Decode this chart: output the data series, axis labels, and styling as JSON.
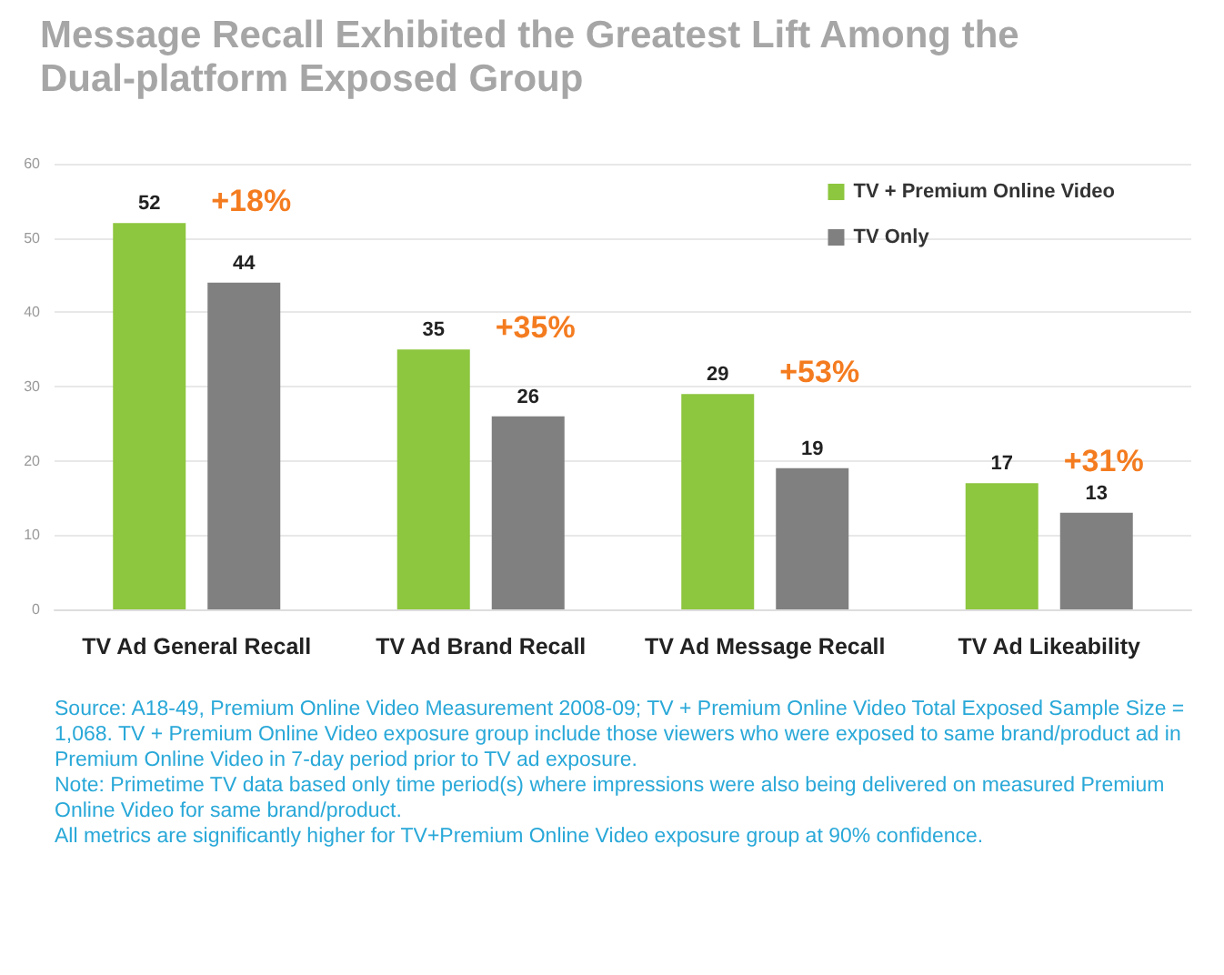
{
  "chart_data": {
    "type": "bar",
    "title": "Message Recall Exhibited the Greatest Lift Among the Dual-platform Exposed Group",
    "categories": [
      "TV Ad General Recall",
      "TV Ad Brand Recall",
      "TV Ad Message Recall",
      "TV Ad Likeability"
    ],
    "series": [
      {
        "name": "TV + Premium Online Video",
        "color": "#8dc63f",
        "values": [
          52,
          35,
          29,
          17
        ]
      },
      {
        "name": "TV Only",
        "color": "#808080",
        "values": [
          44,
          26,
          19,
          13
        ]
      }
    ],
    "ylim": [
      0,
      60
    ],
    "yticks": [
      0,
      10,
      20,
      30,
      40,
      50,
      60
    ],
    "grid": "y",
    "legend": "top right",
    "data_labels": true,
    "annotations": [
      "+18%",
      "+35%",
      "+53%",
      "+31%",
      "Source: A18-49, Premium Online Video Measurement 2008-09; TV + Premium Online Video Total Exposed Sample Size = 1,068. TV + Premium Online Video exposure group include those viewers who were exposed to same brand/product ad in Premium Online Video in 7-day period prior to TV ad exposure.",
      "Note: Primetime TV data based only time period(s) where impressions were also being delivered on measured Premium Online Video for same brand/product.",
      "All metrics are significantly higher for TV+Premium Online Video exposure group at 90% confidence."
    ]
  }
}
